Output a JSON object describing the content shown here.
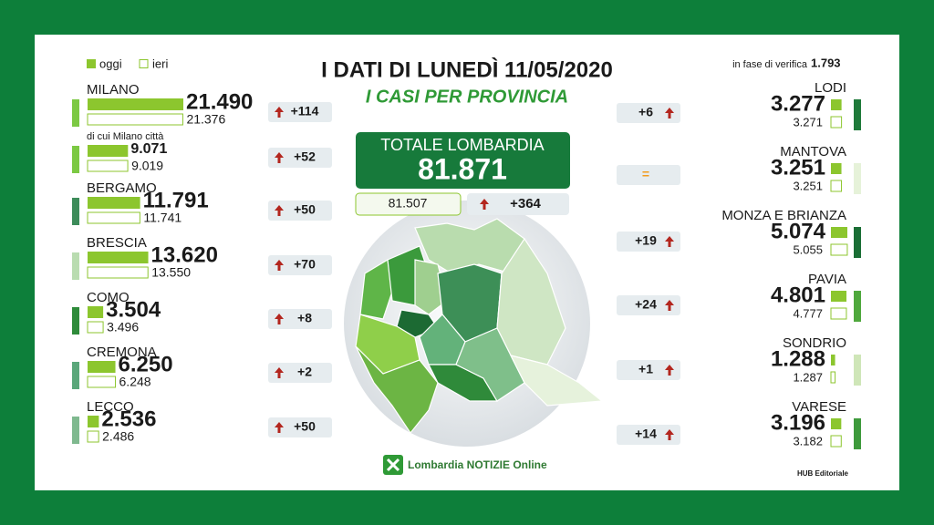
{
  "legend": {
    "today": "oggi",
    "yesterday": "ieri"
  },
  "title": "I DATI DI LUNEDÌ 11/05/2020",
  "subtitle": "I CASI PER PROVINCIA",
  "verification": {
    "label": "in fase di verifica",
    "value": "1.793"
  },
  "total": {
    "label": "TOTALE LOMBARDIA",
    "value": "81.871",
    "yesterday": "81.507",
    "delta": "+364"
  },
  "left": [
    {
      "name": "MILANO",
      "today": {
        "value": 21490,
        "label": "21.490"
      },
      "yesterday": {
        "value": 21376,
        "label": "21.376"
      },
      "delta": {
        "value": 114,
        "label": "+114"
      }
    },
    {
      "name": "di cui Milano città",
      "today": {
        "value": 9071,
        "label": "9.071"
      },
      "yesterday": {
        "value": 9019,
        "label": "9.019"
      },
      "delta": {
        "value": 52,
        "label": "+52"
      }
    },
    {
      "name": "BERGAMO",
      "today": {
        "value": 11791,
        "label": "11.791"
      },
      "yesterday": {
        "value": 11741,
        "label": "11.741"
      },
      "delta": {
        "value": 50,
        "label": "+50"
      }
    },
    {
      "name": "BRESCIA",
      "today": {
        "value": 13620,
        "label": "13.620"
      },
      "yesterday": {
        "value": 13550,
        "label": "13.550"
      },
      "delta": {
        "value": 70,
        "label": "+70"
      }
    },
    {
      "name": "COMO",
      "today": {
        "value": 3504,
        "label": "3.504"
      },
      "yesterday": {
        "value": 3496,
        "label": "3.496"
      },
      "delta": {
        "value": 8,
        "label": "+8"
      }
    },
    {
      "name": "CREMONA",
      "today": {
        "value": 6250,
        "label": "6.250"
      },
      "yesterday": {
        "value": 6248,
        "label": "6.248"
      },
      "delta": {
        "value": 2,
        "label": "+2"
      }
    },
    {
      "name": "LECCO",
      "today": {
        "value": 2536,
        "label": "2.536"
      },
      "yesterday": {
        "value": 2486,
        "label": "2.486"
      },
      "delta": {
        "value": 50,
        "label": "+50"
      }
    }
  ],
  "right": [
    {
      "name": "LODI",
      "today": {
        "value": 3277,
        "label": "3.277"
      },
      "yesterday": {
        "value": 3271,
        "label": "3.271"
      },
      "delta": {
        "value": 6,
        "label": "+6"
      }
    },
    {
      "name": "MANTOVA",
      "today": {
        "value": 3251,
        "label": "3.251"
      },
      "yesterday": {
        "value": 3251,
        "label": "3.251"
      },
      "delta": {
        "value": 0,
        "label": "="
      }
    },
    {
      "name": "MONZA E BRIANZA",
      "today": {
        "value": 5074,
        "label": "5.074"
      },
      "yesterday": {
        "value": 5055,
        "label": "5.055"
      },
      "delta": {
        "value": 19,
        "label": "+19"
      }
    },
    {
      "name": "PAVIA",
      "today": {
        "value": 4801,
        "label": "4.801"
      },
      "yesterday": {
        "value": 4777,
        "label": "4.777"
      },
      "delta": {
        "value": 24,
        "label": "+24"
      }
    },
    {
      "name": "SONDRIO",
      "today": {
        "value": 1288,
        "label": "1.288"
      },
      "yesterday": {
        "value": 1287,
        "label": "1.287"
      },
      "delta": {
        "value": 1,
        "label": "+1"
      }
    },
    {
      "name": "VARESE",
      "today": {
        "value": 3196,
        "label": "3.196"
      },
      "yesterday": {
        "value": 3182,
        "label": "3.182"
      },
      "delta": {
        "value": 14,
        "label": "+14"
      }
    }
  ],
  "footer": {
    "brand": "Lombardia NOTIZIE Online",
    "credit": "HUB Editoriale"
  }
}
